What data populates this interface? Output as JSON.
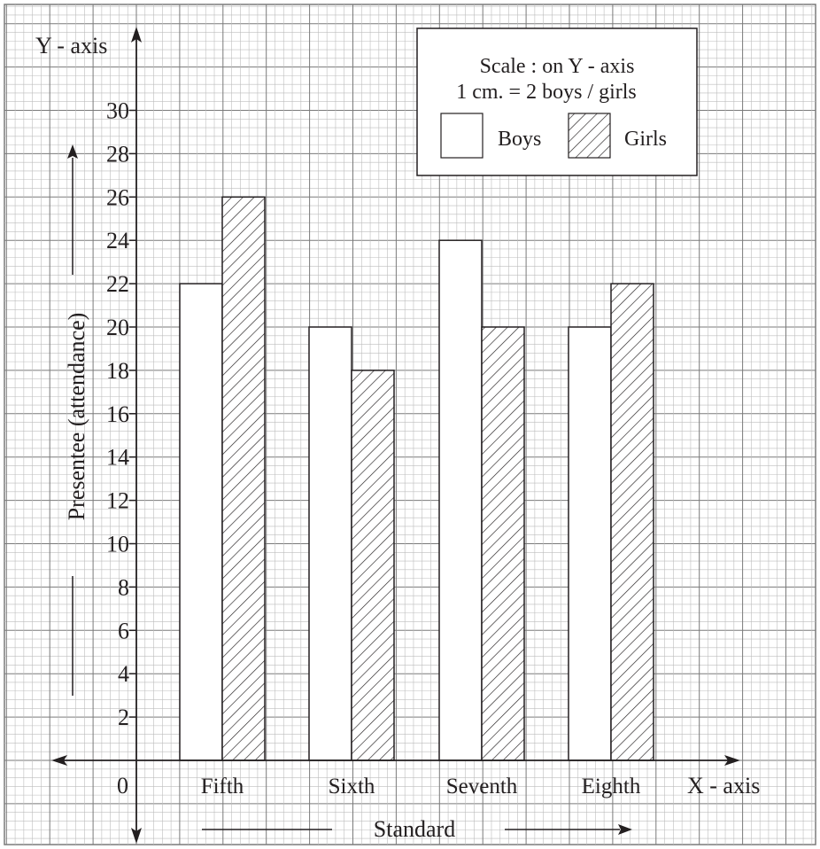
{
  "chart_data": {
    "type": "bar",
    "categories": [
      "Fifth",
      "Sixth",
      "Seventh",
      "Eighth"
    ],
    "series": [
      {
        "name": "Boys",
        "values": [
          22,
          20,
          24,
          20
        ],
        "fill": "#ffffff",
        "pattern": "none"
      },
      {
        "name": "Girls",
        "values": [
          26,
          18,
          20,
          22
        ],
        "fill": "#ffffff",
        "pattern": "diagonal-hatch"
      }
    ],
    "title": "",
    "xlabel": "Standard",
    "ylabel": "Presentee (attendance)",
    "x_axis_name": "X - axis",
    "y_axis_name": "Y - axis",
    "origin_label": "0",
    "ylim": [
      0,
      30
    ],
    "yticks": [
      2,
      4,
      6,
      8,
      10,
      12,
      14,
      16,
      18,
      20,
      22,
      24,
      26,
      28,
      30
    ],
    "grid": true,
    "legend": {
      "position": "top-right",
      "scale_line1": "Scale : on Y - axis",
      "scale_line2": "1 cm. = 2 boys / girls"
    },
    "colors": {
      "grid_minor": "#bdbdbd",
      "grid_major": "#7a7a7a",
      "ink": "#231f20",
      "background": "#ffffff"
    }
  }
}
